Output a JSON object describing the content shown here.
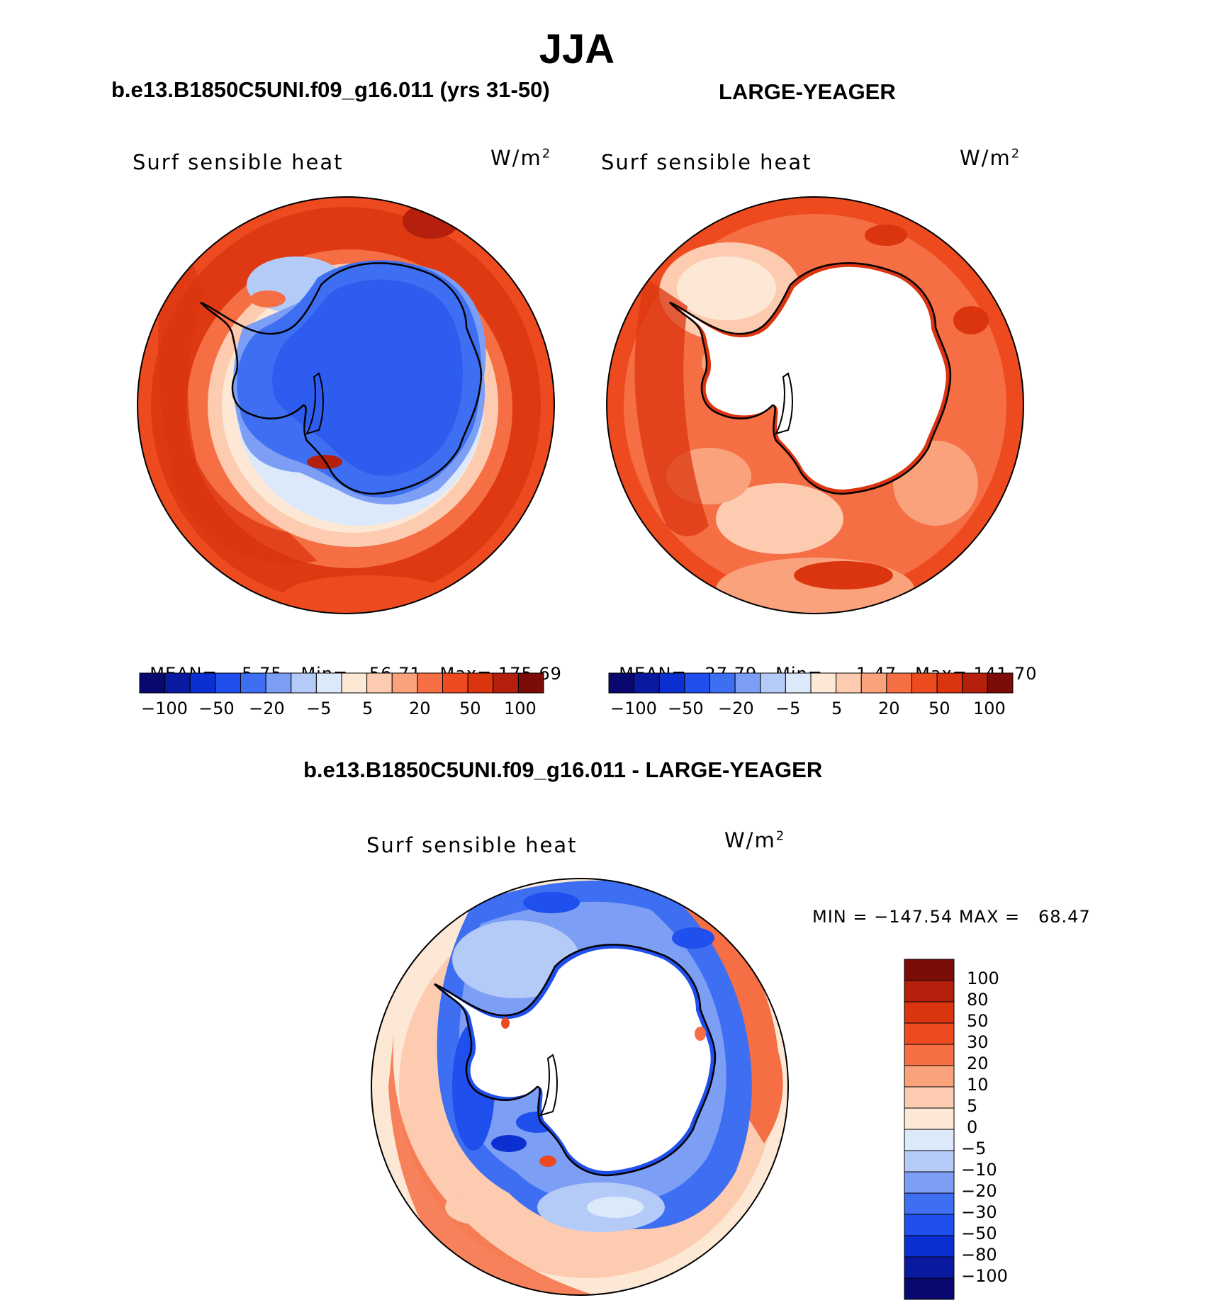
{
  "figure_title": "JJA",
  "panels": [
    {
      "case_title": "b.e13.B1850C5UNI.f09_g16.011 (yrs 31-50)",
      "variable": "Surf sensible heat",
      "units": "W/m",
      "units_sup": "2",
      "stats": {
        "mean_label": "MEAN=",
        "mean": "5.75",
        "min_label": "Min=",
        "min": "−56.71",
        "max_label": "Max=",
        "max": "175.69"
      },
      "colorbar_ticks": [
        "−100",
        "−50",
        "−20",
        "−5",
        "5",
        "20",
        "50",
        "100"
      ],
      "map_state": "control"
    },
    {
      "case_title": "LARGE-YEAGER",
      "variable": "Surf sensible heat",
      "units": "W/m",
      "units_sup": "2",
      "stats": {
        "mean_label": "MEAN=",
        "mean": "27.79",
        "min_label": "Min=",
        "min": "−1.47",
        "max_label": "Max=",
        "max": "141.70"
      },
      "colorbar_ticks": [
        "−100",
        "−50",
        "−20",
        "−5",
        "5",
        "20",
        "50",
        "100"
      ],
      "map_state": "obs"
    },
    {
      "case_title": "b.e13.B1850C5UNI.f09_g16.011 - LARGE-YEAGER",
      "variable": "Surf sensible heat",
      "units": "W/m",
      "units_sup": "2",
      "minmax": "MIN = −147.54 MAX =   68.47",
      "colorbar_ticks": [
        "100",
        "80",
        "50",
        "30",
        "20",
        "10",
        "5",
        "0",
        "−5",
        "−10",
        "−20",
        "−30",
        "−50",
        "−80",
        "−100"
      ],
      "map_state": "difference"
    }
  ],
  "palette": {
    "abs_levels": [
      "#08086e",
      "#0a1aa0",
      "#0c2fd2",
      "#1f4fec",
      "#3e6ef2",
      "#7c9ef5",
      "#b4cbf8",
      "#dbe9fb",
      "#fde8d6",
      "#fccbb0",
      "#f9a27c",
      "#f56e44",
      "#ed4b1f",
      "#db3510",
      "#b4200c",
      "#7c0c08"
    ],
    "diff_levels": [
      "#7c0c08",
      "#b4200c",
      "#db3510",
      "#ed4b1f",
      "#f56e44",
      "#f9a27c",
      "#fccbb0",
      "#fde8d6",
      "#dbe9fb",
      "#b4cbf8",
      "#7c9ef5",
      "#3e6ef2",
      "#1f4fec",
      "#0c2fd2",
      "#0a1aa0",
      "#08086e"
    ]
  }
}
